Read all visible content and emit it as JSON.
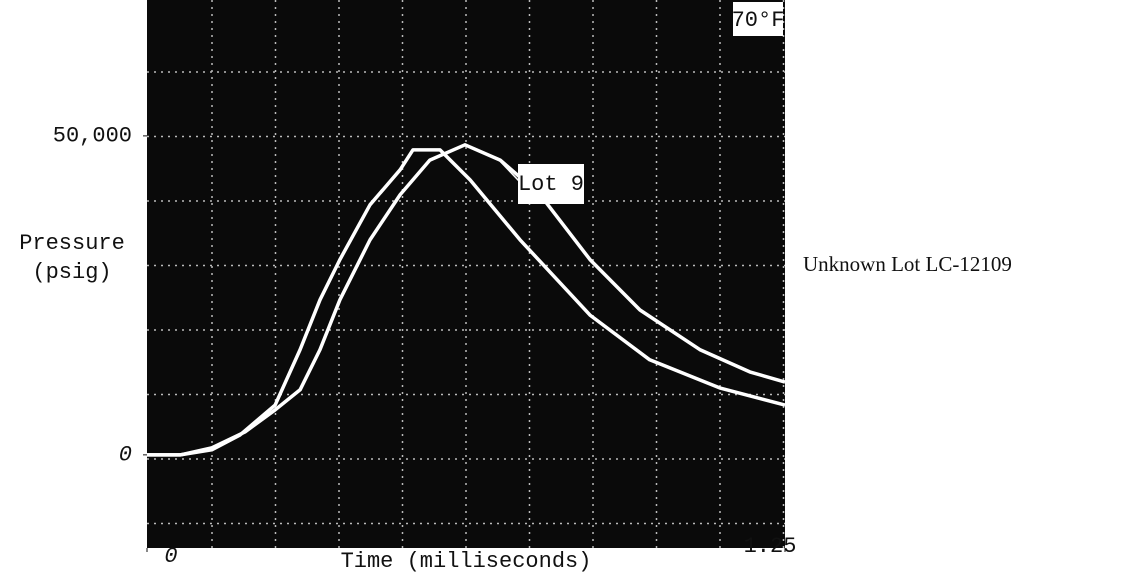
{
  "chart_data": {
    "type": "line",
    "xlabel": "Time (milliseconds)",
    "ylabel": [
      "Pressure",
      "(psig)"
    ],
    "annotation": "70°F",
    "xlim": [
      0,
      1.25
    ],
    "xticks": [
      0,
      1.25
    ],
    "ylim": [
      -14600,
      71300
    ],
    "yticks": [
      0,
      {
        "value": 50000,
        "label": "50,000"
      }
    ],
    "grid": true,
    "background": "#0a0a0a",
    "series": [
      {
        "name": "Lot 9",
        "color": "#ffffff",
        "x": [
          0,
          0.065,
          0.127,
          0.192,
          0.251,
          0.3,
          0.339,
          0.378,
          0.437,
          0.496,
          0.554,
          0.623,
          0.692,
          0.77,
          0.868,
          0.966,
          1.083,
          1.181,
          1.25
        ],
        "values": [
          0,
          0,
          1100,
          3600,
          7050,
          10200,
          16500,
          24300,
          33700,
          40800,
          46200,
          48600,
          46200,
          40800,
          30600,
          22700,
          16500,
          13000,
          11400
        ]
      },
      {
        "name": "Unknown Lot LC-12109",
        "color": "#ffffff",
        "x": [
          0,
          0.065,
          0.127,
          0.182,
          0.251,
          0.3,
          0.339,
          0.378,
          0.437,
          0.496,
          0.521,
          0.574,
          0.633,
          0.731,
          0.868,
          0.985,
          1.122,
          1.25
        ],
        "values": [
          0,
          0,
          800,
          3100,
          7800,
          16500,
          24300,
          30600,
          39200,
          44700,
          47800,
          47800,
          43100,
          33700,
          21900,
          14900,
          10500,
          7800
        ]
      }
    ]
  }
}
